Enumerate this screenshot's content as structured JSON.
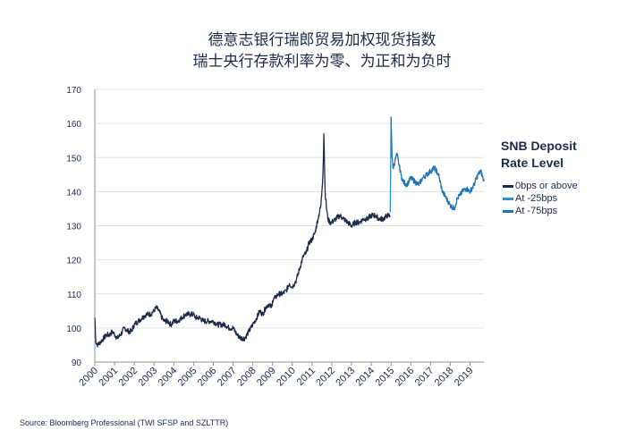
{
  "title_line1": "德意志银行瑞郎贸易加权现货指数",
  "title_line2": "瑞士央行存款利率为零、为正和为负时",
  "source": "Source: Bloomberg Professional (TWI SFSP and SZLTTR)",
  "chart_data": {
    "type": "line",
    "title": "德意志银行瑞郎贸易加权现货指数 / 瑞士央行存款利率为零、为正和为负时",
    "xlabel": "",
    "ylabel": "",
    "xlim": [
      2000.0,
      2019.7
    ],
    "ylim": [
      90,
      170
    ],
    "yticks": [
      90,
      100,
      110,
      120,
      130,
      140,
      150,
      160,
      170
    ],
    "xticks": [
      "2000",
      "2001",
      "2002",
      "2003",
      "2004",
      "2005",
      "2006",
      "2007",
      "2008",
      "2009",
      "2010",
      "2011",
      "2012",
      "2013",
      "2014",
      "2015",
      "2016",
      "2017",
      "2018",
      "2019"
    ],
    "grid": "horizontal",
    "legend": {
      "title": "SNB Deposit Rate Level",
      "title_line1": "SNB Deposit",
      "title_line2": "Rate Level",
      "placement": "right"
    },
    "series": [
      {
        "name": "0bps or above",
        "color": "#1c2a48",
        "x": [
          2000.0,
          2000.05,
          2000.15,
          2000.3,
          2000.45,
          2000.6,
          2000.75,
          2000.9,
          2001.0,
          2001.15,
          2001.3,
          2001.5,
          2001.7,
          2001.85,
          2002.0,
          2002.2,
          2002.4,
          2002.6,
          2002.8,
          2003.0,
          2003.1,
          2003.25,
          2003.4,
          2003.5,
          2003.7,
          2003.85,
          2004.0,
          2004.2,
          2004.4,
          2004.6,
          2004.8,
          2005.0,
          2005.1,
          2005.3,
          2005.5,
          2005.7,
          2005.9,
          2006.0,
          2006.2,
          2006.4,
          2006.6,
          2006.8,
          2007.0,
          2007.2,
          2007.4,
          2007.6,
          2007.8,
          2008.0,
          2008.2,
          2008.35,
          2008.5,
          2008.65,
          2008.8,
          2008.95,
          2009.0,
          2009.15,
          2009.3,
          2009.5,
          2009.7,
          2009.85,
          2010.0,
          2010.2,
          2010.4,
          2010.55,
          2010.7,
          2010.85,
          2011.0,
          2011.15,
          2011.3,
          2011.45,
          2011.55,
          2011.6,
          2011.63,
          2011.66,
          2011.72,
          2011.8,
          2011.9,
          2012.0,
          2012.2,
          2012.4,
          2012.6,
          2012.8,
          2013.0,
          2013.2,
          2013.4,
          2013.6,
          2013.8,
          2014.0,
          2014.2,
          2014.4,
          2014.6,
          2014.8,
          2014.95
        ],
        "y": [
          103,
          96,
          95,
          96,
          97,
          98,
          98,
          99,
          98,
          97,
          98,
          100,
          99,
          99,
          101,
          102,
          103,
          104,
          104,
          105,
          106,
          105,
          103,
          102,
          102,
          101,
          102,
          102,
          103,
          104,
          104,
          104,
          103,
          103,
          102,
          102,
          102,
          102,
          101,
          101,
          101,
          100,
          100,
          98,
          97,
          97,
          99,
          101,
          103,
          105,
          104,
          106,
          107,
          106,
          108,
          109,
          110,
          110,
          111,
          113,
          112,
          114,
          118,
          121,
          122,
          125,
          126,
          128,
          132,
          136,
          145,
          157,
          148,
          140,
          136,
          132,
          131,
          131,
          132,
          133,
          132,
          131,
          130,
          131,
          131,
          132,
          132,
          133,
          133,
          132,
          132,
          133,
          133
        ]
      },
      {
        "name": "At -25bps",
        "color": "#2a8fcc",
        "x": [
          2014.96,
          2015.0
        ],
        "y": [
          134,
          162
        ]
      },
      {
        "name": "At -75bps",
        "color": "#1f73b4",
        "x": [
          2015.0,
          2015.05,
          2015.1,
          2015.2,
          2015.3,
          2015.4,
          2015.5,
          2015.6,
          2015.8,
          2016.0,
          2016.2,
          2016.4,
          2016.6,
          2016.8,
          2017.0,
          2017.2,
          2017.4,
          2017.6,
          2017.8,
          2018.0,
          2018.2,
          2018.35,
          2018.5,
          2018.6,
          2018.8,
          2019.0,
          2019.2,
          2019.4,
          2019.55,
          2019.7
        ],
        "y": [
          162,
          150,
          147,
          149,
          151,
          148,
          145,
          143,
          142,
          144,
          143,
          142,
          144,
          145,
          146,
          147,
          145,
          140,
          138,
          136,
          135,
          138,
          139,
          140,
          141,
          140,
          142,
          145,
          146,
          143
        ]
      }
    ]
  }
}
